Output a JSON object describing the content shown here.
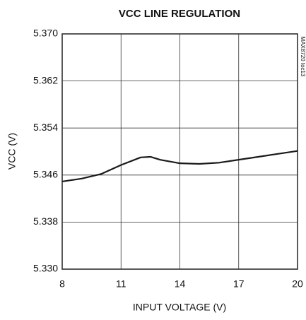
{
  "chart_data": {
    "type": "line",
    "title": "VCC LINE REGULATION",
    "x_label": "INPUT VOLTAGE (V)",
    "y_label": "VCC (V)",
    "annotation": "MAX8720 toc13",
    "x": [
      8,
      9,
      10,
      11,
      12,
      12.5,
      13,
      14,
      15,
      16,
      17,
      18,
      19,
      20
    ],
    "series": [
      {
        "color": "#1a1a1a",
        "values": [
          5.3449,
          5.3454,
          5.3462,
          5.3477,
          5.349,
          5.3491,
          5.3486,
          5.348,
          5.3479,
          5.3481,
          5.3486,
          5.3491,
          5.3496,
          5.3501
        ]
      }
    ],
    "xlim": [
      8,
      20
    ],
    "xticks": [
      8,
      11,
      14,
      17,
      20
    ],
    "ylim": [
      5.33,
      5.37
    ],
    "yticks": [
      {
        "value": 5.33,
        "label": "5.330"
      },
      5.338,
      5.346,
      5.354,
      5.362,
      {
        "value": 5.37,
        "label": "5.370"
      }
    ],
    "grid": true
  }
}
